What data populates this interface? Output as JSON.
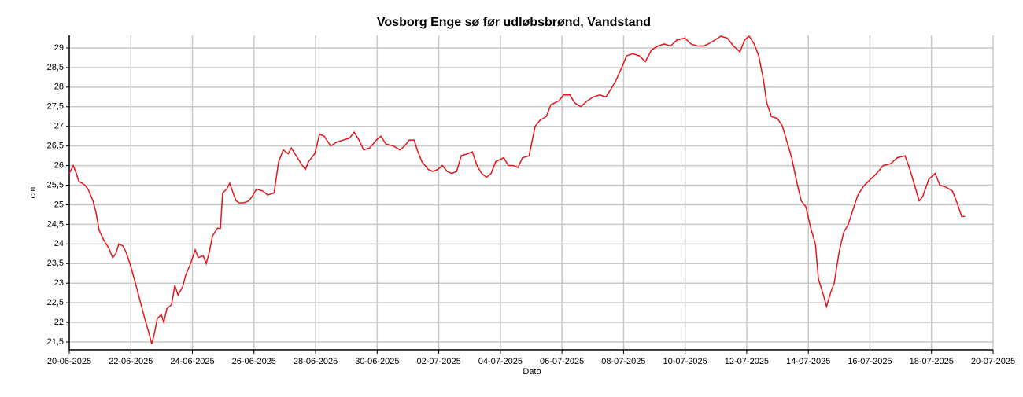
{
  "chart_data": {
    "type": "line",
    "title": "Vosborg Enge sø før udløbsbrønd, Vandstand",
    "x_label": "Dato",
    "y_label": "cm",
    "grid": true,
    "xlim": [
      0,
      30
    ],
    "xticks": [
      {
        "value": 0,
        "label": "20-06-2025"
      },
      {
        "value": 2,
        "label": "22-06-2025"
      },
      {
        "value": 4,
        "label": "24-06-2025"
      },
      {
        "value": 6,
        "label": "26-06-2025"
      },
      {
        "value": 8,
        "label": "28-06-2025"
      },
      {
        "value": 10,
        "label": "30-06-2025"
      },
      {
        "value": 12,
        "label": "02-07-2025"
      },
      {
        "value": 14,
        "label": "04-07-2025"
      },
      {
        "value": 16,
        "label": "06-07-2025"
      },
      {
        "value": 18,
        "label": "08-07-2025"
      },
      {
        "value": 20,
        "label": "10-07-2025"
      },
      {
        "value": 22,
        "label": "12-07-2025"
      },
      {
        "value": 24,
        "label": "14-07-2025"
      },
      {
        "value": 26,
        "label": "16-07-2025"
      },
      {
        "value": 28,
        "label": "18-07-2025"
      },
      {
        "value": 30,
        "label": "20-07-2025"
      }
    ],
    "ylim": [
      21.3,
      29.32
    ],
    "yticks": [
      {
        "value": 21.5,
        "label": "21,5"
      },
      22,
      {
        "value": 22.5,
        "label": "22,5"
      },
      23,
      {
        "value": 23.5,
        "label": "23,5"
      },
      24,
      {
        "value": 24.5,
        "label": "24,5"
      },
      25,
      {
        "value": 25.5,
        "label": "25,5"
      },
      26,
      {
        "value": 26.5,
        "label": "26,5"
      },
      27,
      {
        "value": 27.5,
        "label": "27,5"
      },
      28,
      {
        "value": 28.5,
        "label": "28,5"
      },
      29
    ],
    "series": [
      {
        "color": "#e8141a",
        "x": [
          0,
          0.13,
          0.23,
          0.31,
          0.51,
          0.61,
          0.77,
          0.87,
          0.97,
          1.12,
          1.28,
          1.41,
          1.51,
          1.61,
          1.74,
          1.84,
          1.99,
          2.15,
          2.3,
          2.45,
          2.58,
          2.68,
          2.76,
          2.86,
          2.99,
          3.07,
          3.17,
          3.32,
          3.43,
          3.53,
          3.68,
          3.78,
          3.94,
          4.09,
          4.19,
          4.35,
          4.45,
          4.55,
          4.65,
          4.81,
          4.91,
          4.98,
          5.11,
          5.21,
          5.32,
          5.42,
          5.52,
          5.67,
          5.83,
          5.93,
          6.08,
          6.29,
          6.44,
          6.65,
          6.8,
          6.95,
          7.11,
          7.21,
          7.41,
          7.57,
          7.67,
          7.77,
          7.97,
          8.13,
          8.28,
          8.49,
          8.69,
          8.89,
          9.1,
          9.25,
          9.41,
          9.56,
          9.76,
          9.97,
          10.12,
          10.28,
          10.53,
          10.74,
          10.89,
          11.04,
          11.2,
          11.3,
          11.45,
          11.66,
          11.81,
          11.96,
          12.12,
          12.27,
          12.42,
          12.58,
          12.73,
          12.93,
          13.09,
          13.24,
          13.39,
          13.55,
          13.7,
          13.85,
          14.11,
          14.26,
          14.42,
          14.57,
          14.72,
          14.93,
          15.13,
          15.28,
          15.49,
          15.64,
          15.9,
          16.05,
          16.26,
          16.41,
          16.61,
          16.82,
          17.02,
          17.23,
          17.43,
          17.59,
          17.74,
          17.94,
          18.1,
          18.3,
          18.51,
          18.71,
          18.91,
          19.12,
          19.32,
          19.53,
          19.73,
          19.99,
          20.19,
          20.4,
          20.6,
          20.75,
          20.96,
          21.16,
          21.37,
          21.57,
          21.78,
          21.93,
          22.08,
          22.24,
          22.39,
          22.54,
          22.65,
          22.8,
          23,
          23.16,
          23.31,
          23.46,
          23.62,
          23.77,
          23.92,
          24.08,
          24.23,
          24.33,
          24.49,
          24.59,
          24.74,
          24.84,
          25,
          25.15,
          25.3,
          25.46,
          25.61,
          25.82,
          26.02,
          26.22,
          26.43,
          26.68,
          26.89,
          27.14,
          27.3,
          27.45,
          27.6,
          27.71,
          27.91,
          28.12,
          28.27,
          28.47,
          28.68,
          28.83,
          28.98,
          29.09
        ],
        "values": [
          25.8,
          26,
          25.8,
          25.6,
          25.5,
          25.4,
          25.1,
          24.8,
          24.35,
          24.1,
          23.9,
          23.65,
          23.75,
          24,
          23.95,
          23.8,
          23.45,
          23,
          22.55,
          22.1,
          21.75,
          21.45,
          21.7,
          22.1,
          22.2,
          22,
          22.35,
          22.45,
          22.95,
          22.7,
          22.9,
          23.2,
          23.5,
          23.85,
          23.65,
          23.7,
          23.5,
          23.8,
          24.2,
          24.4,
          24.4,
          25.3,
          25.4,
          25.55,
          25.3,
          25.1,
          25.05,
          25.05,
          25.1,
          25.2,
          25.4,
          25.35,
          25.25,
          25.3,
          26.1,
          26.4,
          26.3,
          26.45,
          26.2,
          26,
          25.9,
          26.1,
          26.3,
          26.8,
          26.75,
          26.5,
          26.6,
          26.65,
          26.7,
          26.85,
          26.65,
          26.4,
          26.45,
          26.65,
          26.75,
          26.55,
          26.5,
          26.4,
          26.5,
          26.65,
          26.65,
          26.4,
          26.1,
          25.9,
          25.85,
          25.9,
          26,
          25.85,
          25.8,
          25.85,
          26.25,
          26.3,
          26.35,
          26,
          25.8,
          25.7,
          25.8,
          26.1,
          26.2,
          26,
          26,
          25.95,
          26.2,
          26.25,
          27,
          27.15,
          27.25,
          27.55,
          27.65,
          27.8,
          27.8,
          27.6,
          27.5,
          27.65,
          27.75,
          27.8,
          27.75,
          27.95,
          28.15,
          28.5,
          28.8,
          28.85,
          28.8,
          28.65,
          28.95,
          29.05,
          29.1,
          29.05,
          29.2,
          29.25,
          29.1,
          29.05,
          29.05,
          29.1,
          29.2,
          29.3,
          29.25,
          29.05,
          28.9,
          29.2,
          29.3,
          29.1,
          28.8,
          28.2,
          27.6,
          27.25,
          27.2,
          27,
          26.6,
          26.2,
          25.6,
          25.1,
          24.95,
          24.4,
          24,
          23.1,
          22.7,
          22.4,
          22.8,
          23,
          23.8,
          24.3,
          24.5,
          24.9,
          25.25,
          25.5,
          25.65,
          25.8,
          26,
          26.05,
          26.2,
          26.25,
          25.9,
          25.5,
          25.1,
          25.2,
          25.65,
          25.8,
          25.5,
          25.45,
          25.35,
          25.05,
          24.7,
          24.7
        ]
      }
    ]
  }
}
